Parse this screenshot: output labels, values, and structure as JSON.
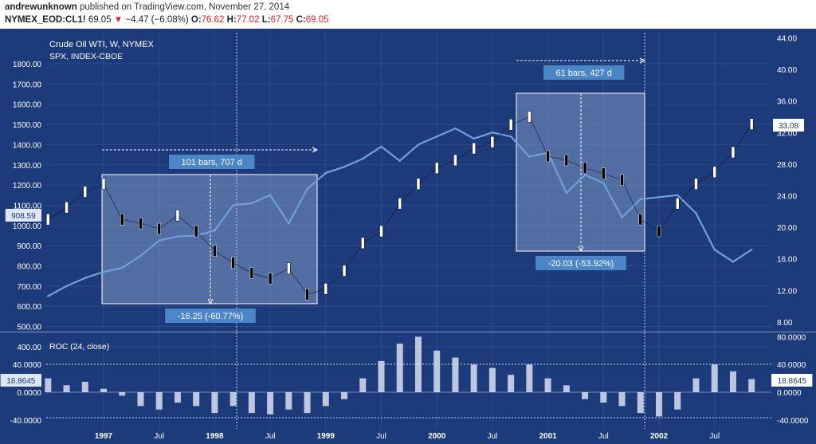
{
  "header": {
    "author": "andrewunknown",
    "published_text": "published on TradingView.com, November 27, 2014",
    "symbol": "NYMEX_EOD:CL1!",
    "last": "69.05",
    "change_arrow": "▼",
    "change": "−4.47 (−6.08%)",
    "o_label": "O:",
    "o_val": "76.62",
    "h_label": "H:",
    "h_val": "77.02",
    "l_label": "L:",
    "l_val": "67.75",
    "c_label": "C:",
    "c_val": "69.05"
  },
  "colors": {
    "background": "#1d3b7a",
    "grid": "#2b4b8a",
    "separator": "#7f97c4",
    "crude_up": "#ffffff",
    "crude_down": "#000000",
    "spx": "#6f9fdc",
    "roc": "#d8e1f1",
    "box_fill": "#a9bfe3",
    "callout": "#4b86c8",
    "axis_text": "#ffffff"
  },
  "chart_data": {
    "type": "line",
    "main_pane": {
      "series": [
        {
          "name": "Crude Oil WTI, W, NYMEX",
          "axis": "right",
          "style": "bars",
          "x": [
            "1996-07",
            "1996-09",
            "1996-11",
            "1997-01",
            "1997-03",
            "1997-05",
            "1997-07",
            "1997-09",
            "1997-11",
            "1998-01",
            "1998-03",
            "1998-05",
            "1998-07",
            "1998-09",
            "1998-11",
            "1999-01",
            "1999-03",
            "1999-05",
            "1999-07",
            "1999-09",
            "1999-11",
            "2000-01",
            "2000-03",
            "2000-05",
            "2000-07",
            "2000-09",
            "2000-11",
            "2001-01",
            "2001-03",
            "2001-05",
            "2001-07",
            "2001-09",
            "2001-11",
            "2002-01",
            "2002-03",
            "2002-05",
            "2002-07",
            "2002-09",
            "2002-11"
          ],
          "values": [
            21,
            22.5,
            24.5,
            25.5,
            21,
            20.5,
            19.8,
            21.5,
            19.5,
            17,
            15.5,
            14.2,
            13.5,
            14.8,
            11.5,
            12.2,
            14.5,
            18,
            19.5,
            23,
            25.5,
            27.5,
            28.5,
            30,
            30.8,
            33,
            34,
            29,
            28.5,
            27.5,
            26.8,
            26,
            21,
            19.5,
            23,
            25.5,
            27,
            29.5,
            33.08
          ]
        },
        {
          "name": "SPX, INDEX-CBOE",
          "axis": "left",
          "style": "line",
          "x": [
            "1996-07",
            "1996-09",
            "1996-11",
            "1997-01",
            "1997-03",
            "1997-05",
            "1997-07",
            "1997-09",
            "1997-11",
            "1998-01",
            "1998-03",
            "1998-05",
            "1998-07",
            "1998-09",
            "1998-11",
            "1999-01",
            "1999-03",
            "1999-05",
            "1999-07",
            "1999-09",
            "1999-11",
            "2000-01",
            "2000-03",
            "2000-05",
            "2000-07",
            "2000-09",
            "2000-11",
            "2001-01",
            "2001-03",
            "2001-05",
            "2001-07",
            "2001-09",
            "2001-11",
            "2002-01",
            "2002-03",
            "2002-05",
            "2002-07",
            "2002-09",
            "2002-11"
          ],
          "values": [
            650,
            700,
            740,
            770,
            790,
            850,
            925,
            945,
            950,
            975,
            1100,
            1110,
            1150,
            1010,
            1180,
            1260,
            1290,
            1330,
            1390,
            1320,
            1400,
            1440,
            1480,
            1430,
            1460,
            1440,
            1340,
            1360,
            1160,
            1250,
            1210,
            1040,
            1130,
            1140,
            1150,
            1060,
            880,
            820,
            880
          ]
        }
      ],
      "left_axis": {
        "ticks": [
          "1800.00",
          "1700.00",
          "1600.00",
          "1500.00",
          "1400.00",
          "1300.00",
          "1200.00",
          "1100.00",
          "1000.00",
          "900.00",
          "800.00",
          "700.00",
          "600.00",
          "500.00",
          "400.00"
        ],
        "min": 350,
        "max": 1820
      },
      "right_axis": {
        "ticks": [
          "44.00",
          "40.00",
          "36.00",
          "32.00",
          "28.00",
          "24.00",
          "20.00",
          "16.00",
          "12.00",
          "8.00"
        ],
        "min": 6.2,
        "max": 44.5
      },
      "x_labels": [
        "1997",
        "Jul",
        "1998",
        "Jul",
        "1999",
        "Jul",
        "2000",
        "Jul",
        "2001",
        "Jul",
        "2002",
        "Jul"
      ],
      "left_marker": "908.59",
      "right_marker": "33.08",
      "measure_1": {
        "bars_label": "101 bars, 707 d",
        "change_label": "-16.25 (-60.77%)"
      },
      "measure_2": {
        "bars_label": "61 bars, 427 d",
        "change_label": "-20.03 (-53.92%)"
      }
    },
    "roc_pane": {
      "name": "ROC (24, close)",
      "style": "histogram",
      "left_ticks": [
        "40.0000",
        "0.0000",
        "-40.0000"
      ],
      "right_ticks": [
        "80.0000",
        "40.0000",
        "0.0000",
        "-40.0000"
      ],
      "left_marker": "18.8645",
      "right_marker": "18.8645",
      "x": [
        "1996-07",
        "1996-09",
        "1996-11",
        "1997-01",
        "1997-03",
        "1997-05",
        "1997-07",
        "1997-09",
        "1997-11",
        "1998-01",
        "1998-03",
        "1998-05",
        "1998-07",
        "1998-09",
        "1998-11",
        "1999-01",
        "1999-03",
        "1999-05",
        "1999-07",
        "1999-09",
        "1999-11",
        "2000-01",
        "2000-03",
        "2000-05",
        "2000-07",
        "2000-09",
        "2000-11",
        "2001-01",
        "2001-03",
        "2001-05",
        "2001-07",
        "2001-09",
        "2001-11",
        "2002-01",
        "2002-03",
        "2002-05",
        "2002-07",
        "2002-09",
        "2002-11"
      ],
      "values": [
        20,
        10,
        15,
        5,
        -5,
        -20,
        -25,
        -15,
        -20,
        -30,
        -20,
        -30,
        -32,
        -25,
        -30,
        -20,
        -10,
        20,
        45,
        70,
        80,
        60,
        50,
        40,
        35,
        25,
        40,
        20,
        10,
        -10,
        -15,
        -20,
        -30,
        -35,
        -25,
        20,
        40,
        30,
        18.86
      ]
    },
    "legend": {
      "main_title": "Crude Oil WTI, W, NYMEX",
      "secondary": "SPX, INDEX-CBOE"
    },
    "grid": true
  }
}
